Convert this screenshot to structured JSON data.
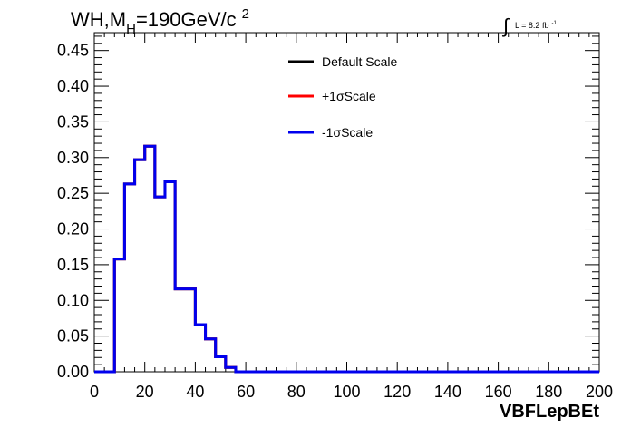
{
  "chart_data": {
    "type": "line",
    "title_parts": {
      "prefix": "WH,M",
      "subscript": "H",
      "middle": "=190GeV/c",
      "superscript": "2"
    },
    "lumi_parts": {
      "integral": "∫",
      "text": "L = 8.2 fb",
      "superscript": "-1"
    },
    "xlabel": "VBFLepBEt",
    "ylabel": "",
    "xlim": [
      0,
      200
    ],
    "ylim": [
      0,
      0.475
    ],
    "x_ticks": [
      "0",
      "20",
      "40",
      "60",
      "80",
      "100",
      "120",
      "140",
      "160",
      "180",
      "200"
    ],
    "y_ticks": [
      "0.00",
      "0.05",
      "0.10",
      "0.15",
      "0.20",
      "0.25",
      "0.30",
      "0.35",
      "0.40",
      "0.45"
    ],
    "grid": false,
    "legend_position": "top-center",
    "bin_edges": [
      0,
      4,
      8,
      12,
      16,
      20,
      24,
      28,
      32,
      36,
      40,
      44,
      48,
      52,
      56,
      60,
      200
    ],
    "series": [
      {
        "name": "Default Scale",
        "color": "#000000",
        "values": [
          0,
          0,
          0.158,
          0.263,
          0.297,
          0.316,
          0.245,
          0.266,
          0.116,
          0.116,
          0.066,
          0.046,
          0.021,
          0.006,
          0,
          0
        ]
      },
      {
        "name": "+1σScale",
        "color": "#ff0000",
        "values": [
          0,
          0,
          0.158,
          0.263,
          0.297,
          0.316,
          0.245,
          0.266,
          0.116,
          0.116,
          0.066,
          0.046,
          0.021,
          0.006,
          0,
          0
        ]
      },
      {
        "name": "-1σScale",
        "color": "#0000ee",
        "values": [
          0,
          0,
          0.158,
          0.263,
          0.297,
          0.316,
          0.245,
          0.266,
          0.116,
          0.116,
          0.066,
          0.046,
          0.021,
          0.006,
          0,
          0
        ]
      }
    ]
  }
}
